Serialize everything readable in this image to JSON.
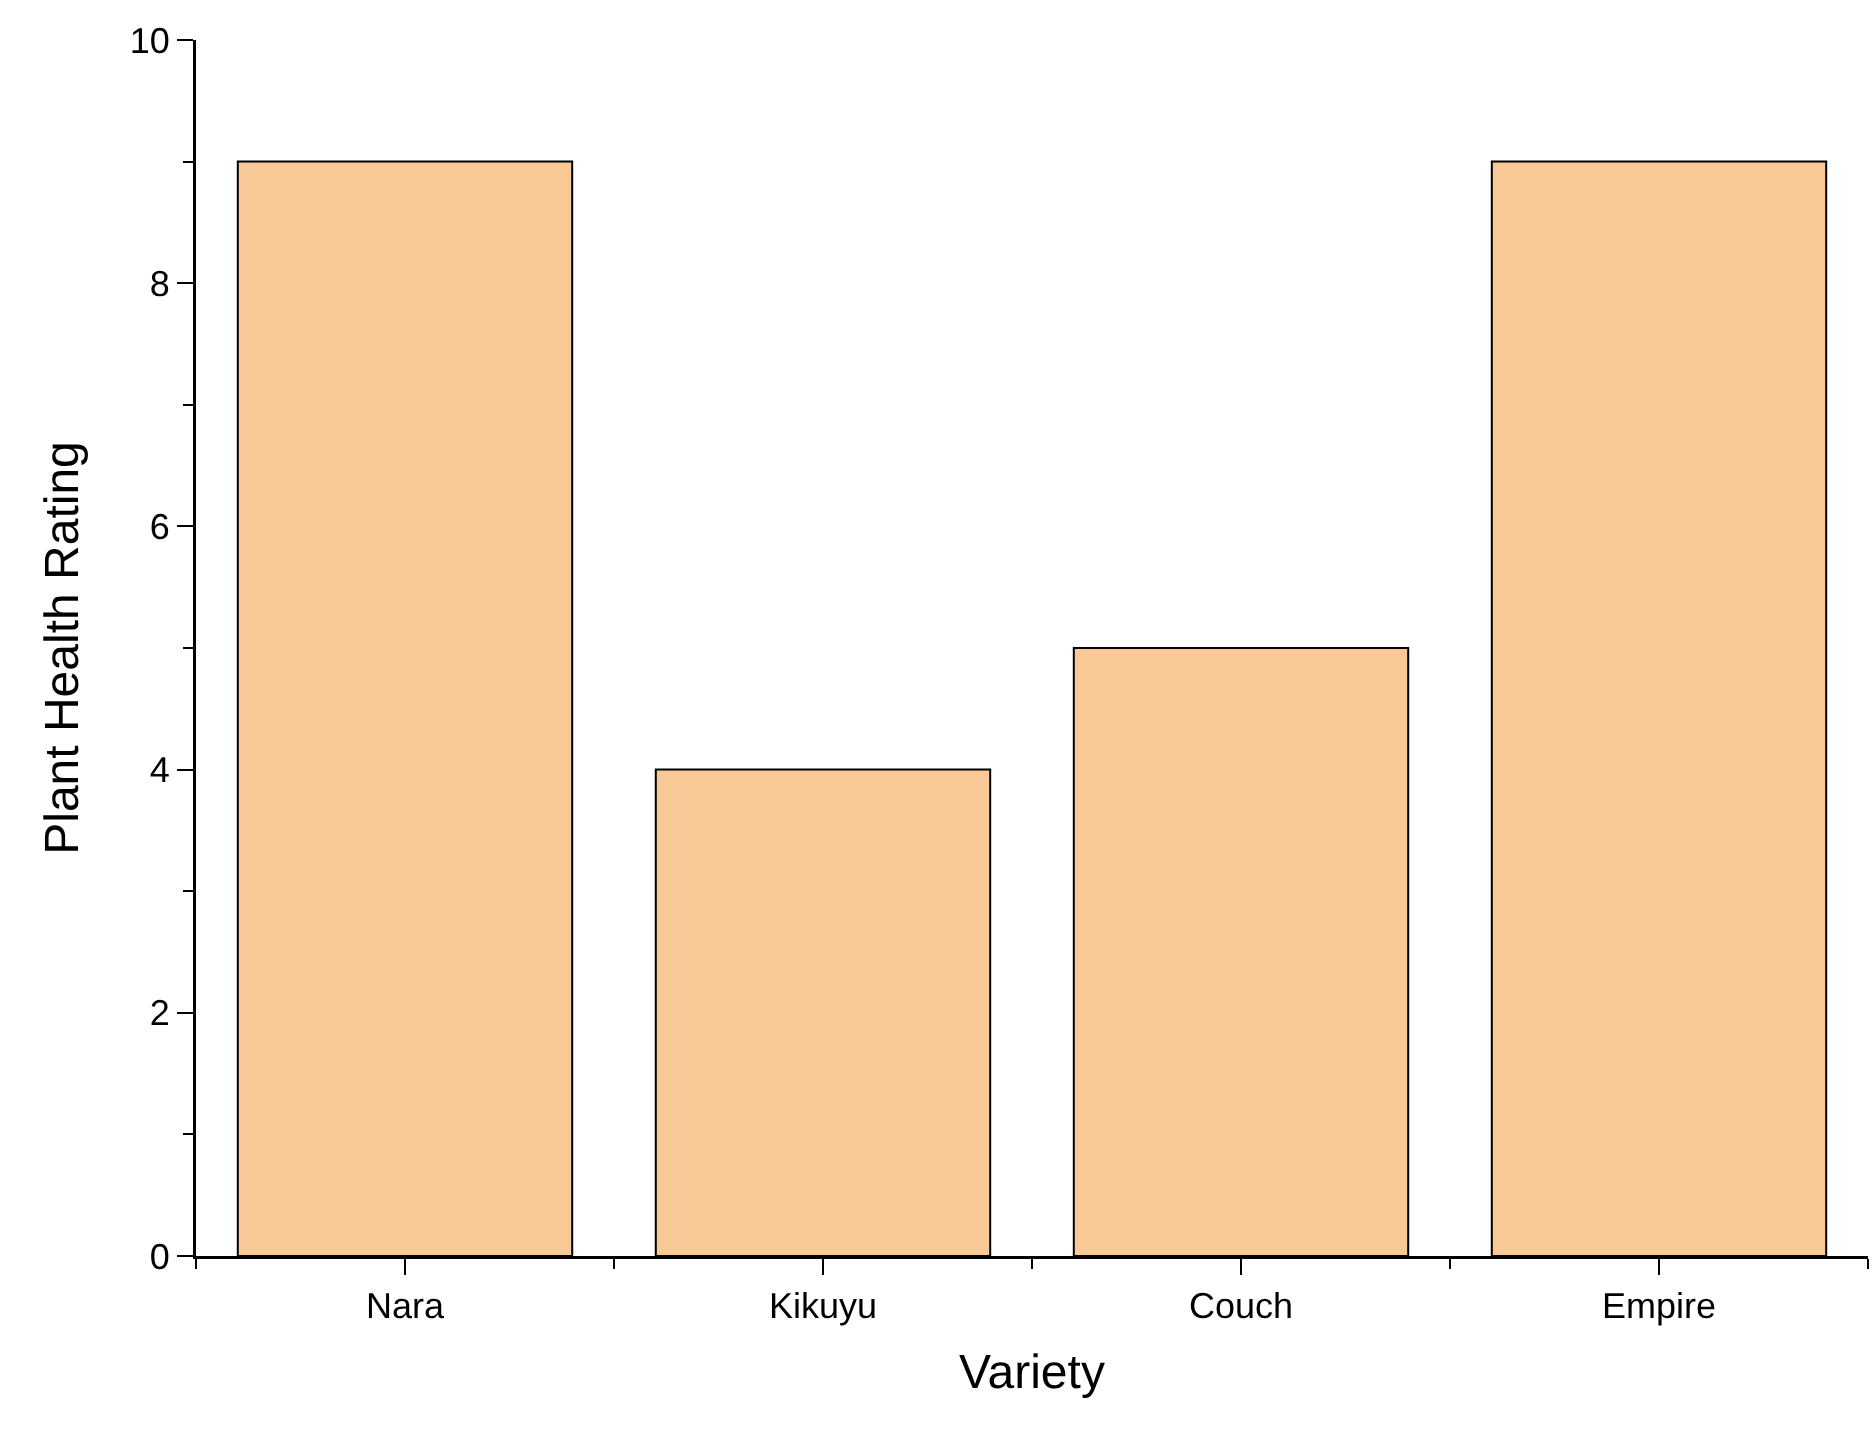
{
  "chart_data": {
    "type": "bar",
    "xlabel": "Variety",
    "ylabel": "Plant Health Rating",
    "categories": [
      "Nara",
      "Kikuyu",
      "Couch",
      "Empire"
    ],
    "values": [
      9,
      4,
      5,
      9
    ],
    "color": "#f9c897",
    "ylim": [
      0,
      10
    ],
    "yticks": [
      0,
      2,
      4,
      6,
      8,
      10
    ],
    "grid": false,
    "legend": false
  }
}
